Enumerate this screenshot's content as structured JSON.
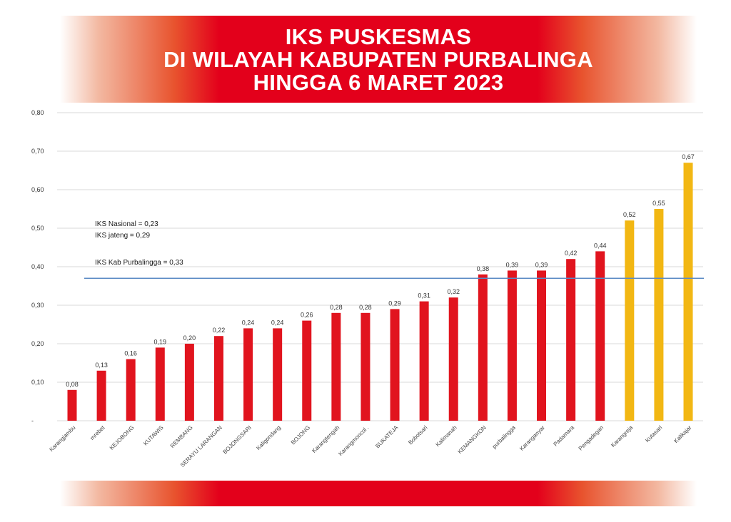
{
  "header": {
    "title_lines": [
      "IKS PUSKESMAS",
      "DI WILAYAH KABUPATEN PURBALINGA",
      "HINGGA 6 MARET 2023"
    ]
  },
  "chart_data": {
    "type": "bar",
    "title": "IKS PUSKESMAS DI WILAYAH KABUPATEN PURBALINGA HINGGA 6 MARET 2023",
    "xlabel": "",
    "ylabel": "",
    "ylim": [
      0,
      0.8
    ],
    "yticks": [
      "-",
      "0,10",
      "0,20",
      "0,30",
      "0,40",
      "0,50",
      "0,60",
      "0,70",
      "0,80"
    ],
    "grid": true,
    "categories": [
      "Karangjambu",
      "mrebet",
      "KEJOBONG",
      "KUTAWIS",
      "REMBANG",
      "SERAYU LARANGAN",
      "BOJONGSARI",
      "Kaligondang",
      "BOJONG",
      "Karangtengah",
      "Karangmoncol .",
      "BUKATEJA",
      "Bobotsari",
      "Kalimanah",
      "KEMANGKON",
      "purbalingga",
      "Karanganyar",
      "Padamara",
      "Pengadegan",
      "Karangreja",
      "Kutasari",
      "Kalikajar"
    ],
    "values": [
      0.08,
      0.13,
      0.16,
      0.19,
      0.2,
      0.22,
      0.24,
      0.24,
      0.26,
      0.28,
      0.28,
      0.29,
      0.31,
      0.32,
      0.38,
      0.39,
      0.39,
      0.42,
      0.44,
      0.52,
      0.55,
      0.67
    ],
    "value_labels": [
      "0,08",
      "0,13",
      "0,16",
      "0,19",
      "0,20",
      "0,22",
      "0,24",
      "0,24",
      "0,26",
      "0,28",
      "0,28",
      "0,29",
      "0,31",
      "0,32",
      "0,38",
      "0,39",
      "0,39",
      "0,42",
      "0,44",
      "0,52",
      "0,55",
      "0,67"
    ],
    "bar_colors": [
      "#e1141e",
      "#e1141e",
      "#e1141e",
      "#e1141e",
      "#e1141e",
      "#e1141e",
      "#e1141e",
      "#e1141e",
      "#e1141e",
      "#e1141e",
      "#e1141e",
      "#e1141e",
      "#e1141e",
      "#e1141e",
      "#e1141e",
      "#e1141e",
      "#e1141e",
      "#e1141e",
      "#e1141e",
      "#f2b713",
      "#f2b713",
      "#f2b713"
    ],
    "reference_line": {
      "value": 0.37,
      "color": "#5b8ac4"
    },
    "annotations": [
      "IKS Nasional = 0,23",
      "IKS jateng = 0,29",
      "IKS Kab Purbalingga = 0,33"
    ]
  },
  "colors": {
    "banner_red": "#e3001b",
    "bar_red": "#e1141e",
    "bar_yellow": "#f2b713",
    "grid": "#d9d9d9",
    "reference_line": "#5b8ac4"
  }
}
